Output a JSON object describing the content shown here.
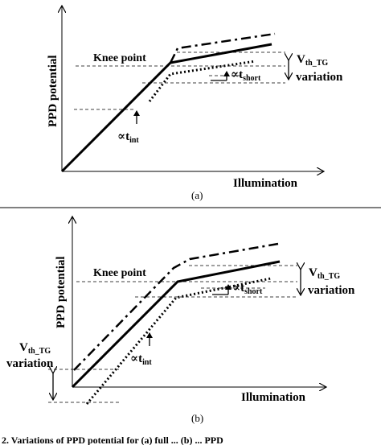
{
  "panel_a": {
    "y_axis_label": "PPD potential",
    "x_axis_label": "Illumination",
    "knee_label": "Knee point",
    "t_int_label": "∝t",
    "t_int_sub": "int",
    "t_short_label": "∝t",
    "t_short_sub": "short",
    "vth_label": "V",
    "vth_sub": "th_TG",
    "variation_label": "variation",
    "caption": "(a)"
  },
  "panel_b": {
    "y_axis_label": "PPD potential",
    "x_axis_label": "Illumination",
    "knee_label": "Knee point",
    "t_int_label": "∝t",
    "t_int_sub": "int",
    "t_short_label": "∝t",
    "t_short_sub": "short",
    "vth_label": "V",
    "vth_sub": "th_TG",
    "variation_label": "variation",
    "vth_left_label": "V",
    "vth_left_sub": "th_TG",
    "variation_left_label": "variation",
    "caption": "(b)"
  },
  "bottom_caption_fragment": "2.   Variations of PPD potential for (a) full ... (b) ... PPD"
}
